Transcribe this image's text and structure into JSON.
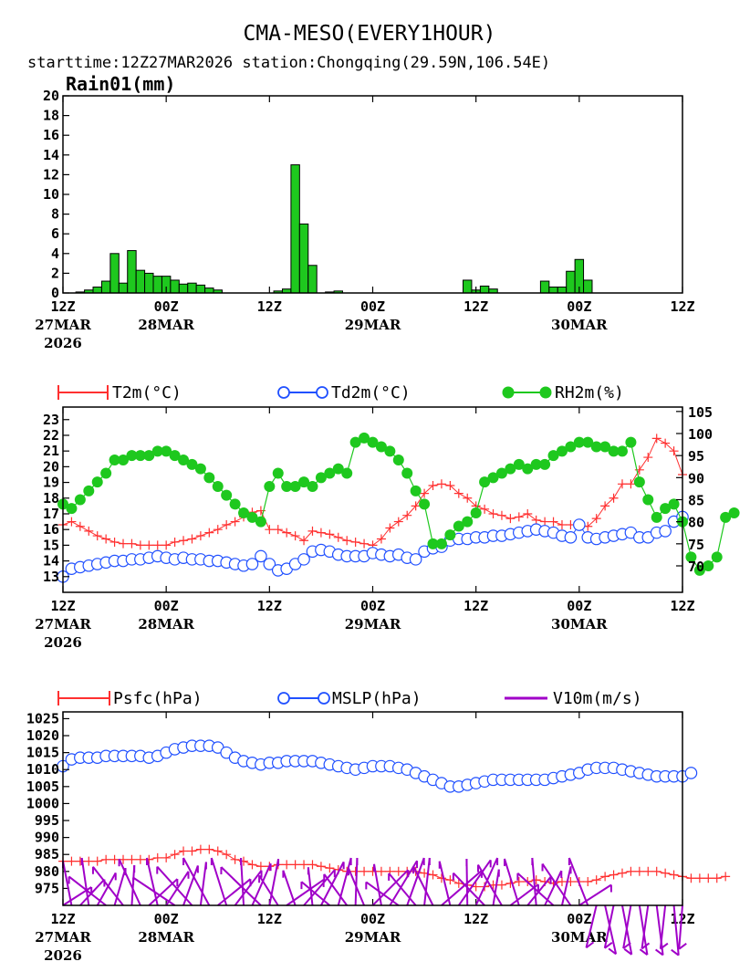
{
  "header": {
    "title": "CMA-MESO(EVERY1HOUR)",
    "subtitle": "starttime:12Z27MAR2026   station:Chongqing(29.59N,106.54E)"
  },
  "x_axis": {
    "ticks": [
      "12Z",
      "00Z",
      "12Z",
      "00Z",
      "12Z",
      "00Z",
      "12Z"
    ],
    "dates": [
      "27MAR",
      "28MAR",
      "",
      "29MAR",
      "",
      "30MAR",
      ""
    ],
    "year": "2026"
  },
  "colors": {
    "rain": "#1ec81e",
    "t2m": "#ff3030",
    "td2m": "#2050ff",
    "rh2m": "#1ec81e",
    "psfc": "#ff3030",
    "mslp": "#2050ff",
    "wind": "#a000c8"
  },
  "chart_data": [
    {
      "type": "bar",
      "title": "Rain01(mm)",
      "x_hours": [
        1,
        2,
        3,
        4,
        5,
        6,
        7,
        8,
        9,
        10,
        11,
        12,
        13,
        14,
        15,
        16,
        17,
        18,
        24,
        25,
        26,
        27,
        28,
        29,
        30,
        31,
        32,
        33,
        34,
        35,
        36,
        37,
        38,
        39,
        40,
        41,
        42,
        43,
        44,
        45,
        46,
        47,
        48,
        49,
        50,
        51,
        52,
        53,
        54,
        55,
        56,
        57,
        58,
        59,
        60,
        61,
        62,
        63
      ],
      "values": [
        0,
        0.1,
        0.3,
        0.6,
        1.2,
        4.0,
        1.0,
        4.3,
        2.3,
        2.0,
        1.7,
        1.7,
        1.3,
        0.9,
        1.0,
        0.8,
        0.5,
        0.3,
        0,
        0.2,
        0.4,
        13.0,
        7.0,
        2.8,
        0,
        0.1,
        0.2,
        0,
        0,
        0,
        0,
        0,
        0,
        0,
        0,
        0,
        0,
        0,
        0,
        0,
        0,
        1.3,
        0.3,
        0.7,
        0.4,
        0,
        0,
        0,
        0,
        0,
        1.2,
        0.6,
        0.6,
        2.2,
        3.4,
        1.3,
        0,
        0
      ],
      "ylim": [
        0,
        20
      ],
      "yticks": [
        "0",
        "2",
        "4",
        "6",
        "8",
        "10",
        "12",
        "14",
        "16",
        "18",
        "20"
      ],
      "xrange_hours": [
        0,
        72
      ]
    },
    {
      "type": "line",
      "series": [
        {
          "name": "T2m(°C)",
          "axis": "left",
          "marker": "plus",
          "values": [
            16.3,
            16.5,
            16.2,
            15.9,
            15.6,
            15.4,
            15.2,
            15.1,
            15.1,
            15.0,
            15.0,
            15.0,
            15.0,
            15.2,
            15.3,
            15.4,
            15.6,
            15.8,
            16.0,
            16.3,
            16.5,
            16.8,
            17.1,
            17.2,
            16.0,
            16.0,
            15.8,
            15.6,
            15.3,
            15.9,
            15.8,
            15.7,
            15.5,
            15.3,
            15.2,
            15.1,
            15.0,
            15.4,
            16.1,
            16.5,
            16.9,
            17.5,
            18.3,
            18.8,
            18.9,
            18.8,
            18.3,
            18.0,
            17.5,
            17.3,
            17.0,
            16.9,
            16.7,
            16.8,
            17.0,
            16.6,
            16.5,
            16.5,
            16.3,
            16.3,
            16.3,
            16.2,
            16.7,
            17.5,
            18.0,
            18.9,
            18.9,
            19.8,
            20.6,
            21.8,
            21.5,
            21.0,
            19.5
          ]
        },
        {
          "name": "Td2m(°C)",
          "axis": "left",
          "marker": "circle",
          "values": [
            13.0,
            13.5,
            13.6,
            13.7,
            13.8,
            13.9,
            14.0,
            14.0,
            14.1,
            14.1,
            14.2,
            14.3,
            14.2,
            14.1,
            14.2,
            14.1,
            14.1,
            14.0,
            14.0,
            13.9,
            13.8,
            13.7,
            13.8,
            14.3,
            13.8,
            13.4,
            13.5,
            13.8,
            14.1,
            14.6,
            14.7,
            14.6,
            14.4,
            14.3,
            14.3,
            14.3,
            14.5,
            14.4,
            14.3,
            14.4,
            14.2,
            14.1,
            14.6,
            14.8,
            14.9,
            15.3,
            15.4,
            15.4,
            15.5,
            15.5,
            15.6,
            15.6,
            15.7,
            15.8,
            15.9,
            16.0,
            15.9,
            15.8,
            15.6,
            15.5,
            16.3,
            15.5,
            15.4,
            15.5,
            15.6,
            15.7,
            15.8,
            15.5,
            15.5,
            15.8,
            15.9,
            16.5,
            16.8
          ]
        },
        {
          "name": "RH2m(%)",
          "axis": "right",
          "marker": "dot",
          "values": [
            84,
            83,
            85,
            87,
            89,
            91,
            94,
            94,
            95,
            95,
            95,
            96,
            96,
            95,
            94,
            93,
            92,
            90,
            88,
            86,
            84,
            82,
            81,
            80,
            88,
            91,
            88,
            88,
            89,
            88,
            90,
            91,
            92,
            91,
            98,
            99,
            98,
            97,
            96,
            94,
            91,
            87,
            84,
            75,
            75,
            77,
            79,
            80,
            82,
            89,
            90,
            91,
            92,
            93,
            92,
            93,
            93,
            95,
            96,
            97,
            98,
            98,
            97,
            97,
            96,
            96,
            98,
            89,
            85,
            81,
            83,
            84,
            80,
            72,
            69,
            70,
            72,
            81,
            82
          ]
        }
      ],
      "ylim": [
        12,
        23.8
      ],
      "yticks": [
        "13",
        "14",
        "15",
        "16",
        "17",
        "18",
        "19",
        "20",
        "21",
        "22",
        "23"
      ],
      "y2lim": [
        64,
        106
      ],
      "y2ticks": [
        "70",
        "75",
        "80",
        "85",
        "90",
        "95",
        "100",
        "105"
      ],
      "xrange_hours": [
        0,
        72
      ]
    },
    {
      "type": "line",
      "series": [
        {
          "name": "Psfc(hPa)",
          "marker": "plus",
          "values": [
            983,
            983,
            983,
            983,
            983,
            983.5,
            983.5,
            983.5,
            983.5,
            983.5,
            983.5,
            984,
            984,
            985,
            986,
            986,
            986.5,
            986.5,
            986,
            985,
            983.5,
            983,
            982,
            981.5,
            981.5,
            982,
            982,
            982,
            982,
            982,
            981.5,
            981,
            980.5,
            980,
            980,
            980,
            980,
            980,
            980,
            980,
            980,
            980,
            979.5,
            979,
            978,
            977.5,
            976.5,
            976,
            975.5,
            975.5,
            976,
            976,
            976.5,
            977,
            977,
            977.5,
            977,
            976.5,
            977,
            977,
            977,
            977,
            977.5,
            978.5,
            979,
            979.5,
            980,
            980,
            980,
            980,
            979.5,
            979,
            978.5,
            978,
            978,
            978,
            978,
            978.5
          ]
        },
        {
          "name": "MSLP(hPa)",
          "marker": "circle",
          "values": [
            1011,
            1013,
            1013.5,
            1013.5,
            1013.5,
            1014,
            1014,
            1014,
            1014,
            1014,
            1013.5,
            1014,
            1015,
            1016,
            1016.5,
            1017,
            1017,
            1017,
            1016.5,
            1015,
            1013.5,
            1012.5,
            1012,
            1011.5,
            1012,
            1012,
            1012.5,
            1012.5,
            1012.5,
            1012.5,
            1012,
            1011.5,
            1011,
            1010.5,
            1010,
            1010.5,
            1011,
            1011,
            1011,
            1010.5,
            1010,
            1009,
            1008,
            1007,
            1006,
            1005,
            1005,
            1005.5,
            1006,
            1006.5,
            1007,
            1007,
            1007,
            1007,
            1007,
            1007,
            1007,
            1007.5,
            1008,
            1008.5,
            1009,
            1010,
            1010.5,
            1010.5,
            1010.5,
            1010,
            1009.5,
            1009,
            1008.5,
            1008,
            1008,
            1008,
            1008,
            1009
          ]
        },
        {
          "name": "V10m(m/s)",
          "marker": "barb"
        }
      ],
      "ylim": [
        970,
        1027
      ],
      "yticks": [
        "975",
        "980",
        "985",
        "990",
        "995",
        "1000",
        "1005",
        "1010",
        "1015",
        "1020",
        "1025"
      ],
      "xrange_hours": [
        0,
        72
      ]
    }
  ]
}
